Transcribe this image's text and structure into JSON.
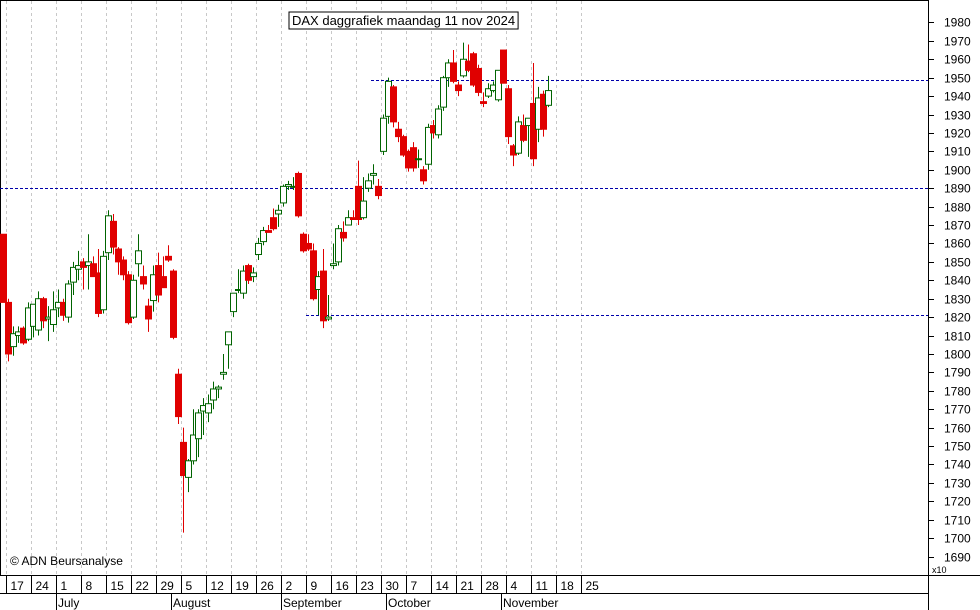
{
  "chart_data": {
    "type": "candlestick",
    "title": "DAX daggrafiek maandag 11 nov 2024",
    "copyright": "© ADN Beursanalyse",
    "y_multiplier": "x10",
    "ylim": [
      16800,
      19900
    ],
    "y_ticks": [
      1690,
      1700,
      1710,
      1720,
      1730,
      1740,
      1750,
      1760,
      1770,
      1780,
      1790,
      1800,
      1810,
      1820,
      1830,
      1840,
      1850,
      1860,
      1870,
      1880,
      1890,
      1900,
      1910,
      1920,
      1930,
      1940,
      1950,
      1960,
      1970,
      1980
    ],
    "x_day_labels": [
      "17",
      "24",
      "1",
      "8",
      "15",
      "22",
      "29",
      "5",
      "12",
      "19",
      "26",
      "2",
      "9",
      "16",
      "23",
      "30",
      "7",
      "14",
      "21",
      "28",
      "4",
      "11",
      "18",
      "25"
    ],
    "month_labels": [
      "July",
      "August",
      "September",
      "October",
      "November"
    ],
    "horizontal_levels": [
      {
        "value": 18900,
        "from": "start"
      },
      {
        "value": 19490,
        "from": "2024-09-26"
      },
      {
        "value": 18210,
        "from": "2024-09-09"
      }
    ],
    "candles": [
      {
        "d": "2024-06-14",
        "o": 18650,
        "h": 18650,
        "l": 18280,
        "c": 18280
      },
      {
        "d": "2024-06-17",
        "o": 18280,
        "h": 18300,
        "l": 17960,
        "c": 18000
      },
      {
        "d": "2024-06-18",
        "o": 18040,
        "h": 18150,
        "l": 17990,
        "c": 18110
      },
      {
        "d": "2024-06-19",
        "o": 18100,
        "h": 18150,
        "l": 18060,
        "c": 18120
      },
      {
        "d": "2024-06-20",
        "o": 18140,
        "h": 18150,
        "l": 18050,
        "c": 18060
      },
      {
        "d": "2024-06-21",
        "o": 18080,
        "h": 18280,
        "l": 18070,
        "c": 18250
      },
      {
        "d": "2024-06-24",
        "o": 18150,
        "h": 18270,
        "l": 18090,
        "c": 18270
      },
      {
        "d": "2024-06-25",
        "o": 18130,
        "h": 18340,
        "l": 18100,
        "c": 18300
      },
      {
        "d": "2024-06-26",
        "o": 18300,
        "h": 18310,
        "l": 18140,
        "c": 18180
      },
      {
        "d": "2024-06-27",
        "o": 18190,
        "h": 18260,
        "l": 18070,
        "c": 18200
      },
      {
        "d": "2024-06-28",
        "o": 18160,
        "h": 18340,
        "l": 18120,
        "c": 18240
      },
      {
        "d": "2024-07-01",
        "o": 18250,
        "h": 18350,
        "l": 18200,
        "c": 18280
      },
      {
        "d": "2024-07-02",
        "o": 18280,
        "h": 18300,
        "l": 18180,
        "c": 18210
      },
      {
        "d": "2024-07-03",
        "o": 18200,
        "h": 18400,
        "l": 18170,
        "c": 18380
      },
      {
        "d": "2024-07-04",
        "o": 18390,
        "h": 18500,
        "l": 18320,
        "c": 18470
      },
      {
        "d": "2024-07-05",
        "o": 18460,
        "h": 18560,
        "l": 18400,
        "c": 18480
      },
      {
        "d": "2024-07-08",
        "o": 18500,
        "h": 18520,
        "l": 18350,
        "c": 18470
      },
      {
        "d": "2024-07-09",
        "o": 18480,
        "h": 18650,
        "l": 18350,
        "c": 18500
      },
      {
        "d": "2024-07-10",
        "o": 18490,
        "h": 18530,
        "l": 18420,
        "c": 18420
      },
      {
        "d": "2024-07-11",
        "o": 18440,
        "h": 18570,
        "l": 18200,
        "c": 18220
      },
      {
        "d": "2024-07-12",
        "o": 18240,
        "h": 18560,
        "l": 18220,
        "c": 18530
      },
      {
        "d": "2024-07-15",
        "o": 18550,
        "h": 18780,
        "l": 18510,
        "c": 18750
      },
      {
        "d": "2024-07-16",
        "o": 18720,
        "h": 18760,
        "l": 18540,
        "c": 18580
      },
      {
        "d": "2024-07-17",
        "o": 18570,
        "h": 18580,
        "l": 18430,
        "c": 18500
      },
      {
        "d": "2024-07-18",
        "o": 18510,
        "h": 18530,
        "l": 18400,
        "c": 18430
      },
      {
        "d": "2024-07-19",
        "o": 18430,
        "h": 18450,
        "l": 18160,
        "c": 18170
      },
      {
        "d": "2024-07-22",
        "o": 18200,
        "h": 18430,
        "l": 18190,
        "c": 18400
      },
      {
        "d": "2024-07-23",
        "o": 18490,
        "h": 18650,
        "l": 18420,
        "c": 18560
      },
      {
        "d": "2024-07-24",
        "o": 18420,
        "h": 18480,
        "l": 18350,
        "c": 18380
      },
      {
        "d": "2024-07-25",
        "o": 18260,
        "h": 18300,
        "l": 18120,
        "c": 18190
      },
      {
        "d": "2024-07-26",
        "o": 18290,
        "h": 18480,
        "l": 18230,
        "c": 18430
      },
      {
        "d": "2024-07-29",
        "o": 18480,
        "h": 18550,
        "l": 18280,
        "c": 18320
      },
      {
        "d": "2024-07-30",
        "o": 18420,
        "h": 18530,
        "l": 18370,
        "c": 18360
      },
      {
        "d": "2024-07-31",
        "o": 18530,
        "h": 18590,
        "l": 18500,
        "c": 18510
      },
      {
        "d": "2024-08-01",
        "o": 18450,
        "h": 18460,
        "l": 18080,
        "c": 18090
      },
      {
        "d": "2024-08-02",
        "o": 17890,
        "h": 17920,
        "l": 17620,
        "c": 17660
      },
      {
        "d": "2024-08-05",
        "o": 17520,
        "h": 17600,
        "l": 17030,
        "c": 17340
      },
      {
        "d": "2024-08-06",
        "o": 17330,
        "h": 17430,
        "l": 17250,
        "c": 17420
      },
      {
        "d": "2024-08-07",
        "o": 17420,
        "h": 17700,
        "l": 17400,
        "c": 17560
      },
      {
        "d": "2024-08-08",
        "o": 17540,
        "h": 17700,
        "l": 17440,
        "c": 17680
      },
      {
        "d": "2024-08-09",
        "o": 17690,
        "h": 17760,
        "l": 17560,
        "c": 17720
      },
      {
        "d": "2024-08-12",
        "o": 17680,
        "h": 17780,
        "l": 17630,
        "c": 17730
      },
      {
        "d": "2024-08-13",
        "o": 17750,
        "h": 17850,
        "l": 17700,
        "c": 17810
      },
      {
        "d": "2024-08-14",
        "o": 17810,
        "h": 17830,
        "l": 17760,
        "c": 17820
      },
      {
        "d": "2024-08-15",
        "o": 17890,
        "h": 18000,
        "l": 17860,
        "c": 17900
      },
      {
        "d": "2024-08-16",
        "o": 18050,
        "h": 18120,
        "l": 17920,
        "c": 18120
      },
      {
        "d": "2024-08-19",
        "o": 18230,
        "h": 18300,
        "l": 18200,
        "c": 18330
      },
      {
        "d": "2024-08-20",
        "o": 18350,
        "h": 18460,
        "l": 18330,
        "c": 18350
      },
      {
        "d": "2024-08-21",
        "o": 18330,
        "h": 18480,
        "l": 18300,
        "c": 18450
      },
      {
        "d": "2024-08-22",
        "o": 18480,
        "h": 18490,
        "l": 18380,
        "c": 18400
      },
      {
        "d": "2024-08-23",
        "o": 18420,
        "h": 18470,
        "l": 18390,
        "c": 18440
      },
      {
        "d": "2024-08-26",
        "o": 18540,
        "h": 18630,
        "l": 18510,
        "c": 18600
      },
      {
        "d": "2024-08-27",
        "o": 18610,
        "h": 18690,
        "l": 18590,
        "c": 18670
      },
      {
        "d": "2024-08-28",
        "o": 18670,
        "h": 18700,
        "l": 18660,
        "c": 18660
      },
      {
        "d": "2024-08-29",
        "o": 18740,
        "h": 18790,
        "l": 18670,
        "c": 18680
      },
      {
        "d": "2024-08-30",
        "o": 18760,
        "h": 18810,
        "l": 18690,
        "c": 18780
      },
      {
        "d": "2024-09-02",
        "o": 18820,
        "h": 18920,
        "l": 18800,
        "c": 18910
      },
      {
        "d": "2024-09-03",
        "o": 18910,
        "h": 18940,
        "l": 18890,
        "c": 18920
      },
      {
        "d": "2024-09-04",
        "o": 18910,
        "h": 18960,
        "l": 18890,
        "c": 18910
      },
      {
        "d": "2024-09-05",
        "o": 18980,
        "h": 18990,
        "l": 18740,
        "c": 18750
      },
      {
        "d": "2024-09-06",
        "o": 18650,
        "h": 18660,
        "l": 18550,
        "c": 18560
      },
      {
        "d": "2024-09-09",
        "o": 18600,
        "h": 18650,
        "l": 18560,
        "c": 18570
      },
      {
        "d": "2024-09-10",
        "o": 18560,
        "h": 18600,
        "l": 18290,
        "c": 18300
      },
      {
        "d": "2024-09-11",
        "o": 18350,
        "h": 18450,
        "l": 18210,
        "c": 18420
      },
      {
        "d": "2024-09-12",
        "o": 18450,
        "h": 18570,
        "l": 18140,
        "c": 18180
      },
      {
        "d": "2024-09-13",
        "o": 18190,
        "h": 18320,
        "l": 18180,
        "c": 18200
      },
      {
        "d": "2024-09-16",
        "o": 18480,
        "h": 18600,
        "l": 18460,
        "c": 18490
      },
      {
        "d": "2024-09-17",
        "o": 18500,
        "h": 18700,
        "l": 18480,
        "c": 18680
      },
      {
        "d": "2024-09-18",
        "o": 18660,
        "h": 18720,
        "l": 18610,
        "c": 18630
      },
      {
        "d": "2024-09-19",
        "o": 18700,
        "h": 18780,
        "l": 18700,
        "c": 18740
      },
      {
        "d": "2024-09-20",
        "o": 18740,
        "h": 18780,
        "l": 18730,
        "c": 18730
      },
      {
        "d": "2024-09-23",
        "o": 18910,
        "h": 19050,
        "l": 18700,
        "c": 18730
      },
      {
        "d": "2024-09-24",
        "o": 18740,
        "h": 18960,
        "l": 18730,
        "c": 18830
      },
      {
        "d": "2024-09-25",
        "o": 18900,
        "h": 18980,
        "l": 18880,
        "c": 18940
      },
      {
        "d": "2024-09-26",
        "o": 18970,
        "h": 19030,
        "l": 18920,
        "c": 18980
      },
      {
        "d": "2024-09-27",
        "o": 18910,
        "h": 18950,
        "l": 18840,
        "c": 18860
      },
      {
        "d": "2024-09-30",
        "o": 19100,
        "h": 19300,
        "l": 19080,
        "c": 19280
      },
      {
        "d": "2024-10-01",
        "o": 19290,
        "h": 19500,
        "l": 19250,
        "c": 19480
      },
      {
        "d": "2024-10-02",
        "o": 19450,
        "h": 19460,
        "l": 19230,
        "c": 19260
      },
      {
        "d": "2024-10-03",
        "o": 19220,
        "h": 19260,
        "l": 19150,
        "c": 19180
      },
      {
        "d": "2024-10-04",
        "o": 19180,
        "h": 19190,
        "l": 19070,
        "c": 19080
      },
      {
        "d": "2024-10-07",
        "o": 19100,
        "h": 19110,
        "l": 18990,
        "c": 19010
      },
      {
        "d": "2024-10-08",
        "o": 19120,
        "h": 19150,
        "l": 18990,
        "c": 19010
      },
      {
        "d": "2024-10-09",
        "o": 19060,
        "h": 19110,
        "l": 19010,
        "c": 19060
      },
      {
        "d": "2024-10-10",
        "o": 19000,
        "h": 19020,
        "l": 18920,
        "c": 18940
      },
      {
        "d": "2024-10-11",
        "o": 19030,
        "h": 19250,
        "l": 19000,
        "c": 19230
      },
      {
        "d": "2024-10-14",
        "o": 19240,
        "h": 19270,
        "l": 19170,
        "c": 19200
      },
      {
        "d": "2024-10-15",
        "o": 19190,
        "h": 19350,
        "l": 19170,
        "c": 19330
      },
      {
        "d": "2024-10-16",
        "o": 19340,
        "h": 19510,
        "l": 19320,
        "c": 19500
      },
      {
        "d": "2024-10-17",
        "o": 19500,
        "h": 19600,
        "l": 19450,
        "c": 19580
      },
      {
        "d": "2024-10-18",
        "o": 19580,
        "h": 19650,
        "l": 19470,
        "c": 19480
      },
      {
        "d": "2024-10-21",
        "o": 19460,
        "h": 19480,
        "l": 19400,
        "c": 19430
      },
      {
        "d": "2024-10-22",
        "o": 19510,
        "h": 19690,
        "l": 19500,
        "c": 19600
      },
      {
        "d": "2024-10-23",
        "o": 19590,
        "h": 19680,
        "l": 19530,
        "c": 19540
      },
      {
        "d": "2024-10-24",
        "o": 19630,
        "h": 19640,
        "l": 19450,
        "c": 19460
      },
      {
        "d": "2024-10-25",
        "o": 19550,
        "h": 19570,
        "l": 19400,
        "c": 19420
      },
      {
        "d": "2024-10-28",
        "o": 19370,
        "h": 19420,
        "l": 19340,
        "c": 19360
      },
      {
        "d": "2024-10-29",
        "o": 19400,
        "h": 19470,
        "l": 19390,
        "c": 19440
      },
      {
        "d": "2024-10-30",
        "o": 19430,
        "h": 19480,
        "l": 19420,
        "c": 19460
      },
      {
        "d": "2024-10-31",
        "o": 19380,
        "h": 19540,
        "l": 19370,
        "c": 19540
      },
      {
        "d": "2024-11-01",
        "o": 19650,
        "h": 19650,
        "l": 19470,
        "c": 19470
      },
      {
        "d": "2024-11-04",
        "o": 19440,
        "h": 19460,
        "l": 19140,
        "c": 19180
      },
      {
        "d": "2024-11-05",
        "o": 19130,
        "h": 19140,
        "l": 19020,
        "c": 19080
      },
      {
        "d": "2024-11-06",
        "o": 19090,
        "h": 19290,
        "l": 19080,
        "c": 19260
      },
      {
        "d": "2024-11-07",
        "o": 19240,
        "h": 19300,
        "l": 19150,
        "c": 19160
      },
      {
        "d": "2024-11-08",
        "o": 19240,
        "h": 19280,
        "l": 19070,
        "c": 19280
      },
      {
        "d": "2024-11-11",
        "o": 19360,
        "h": 19580,
        "l": 19020,
        "c": 19060
      },
      {
        "d": "2024-11-12",
        "o": 19220,
        "h": 19450,
        "l": 19150,
        "c": 19390
      },
      {
        "d": "2024-11-13",
        "o": 19410,
        "h": 19430,
        "l": 19180,
        "c": 19220
      },
      {
        "d": "2024-11-14",
        "o": 19350,
        "h": 19510,
        "l": 19340,
        "c": 19430
      }
    ]
  }
}
